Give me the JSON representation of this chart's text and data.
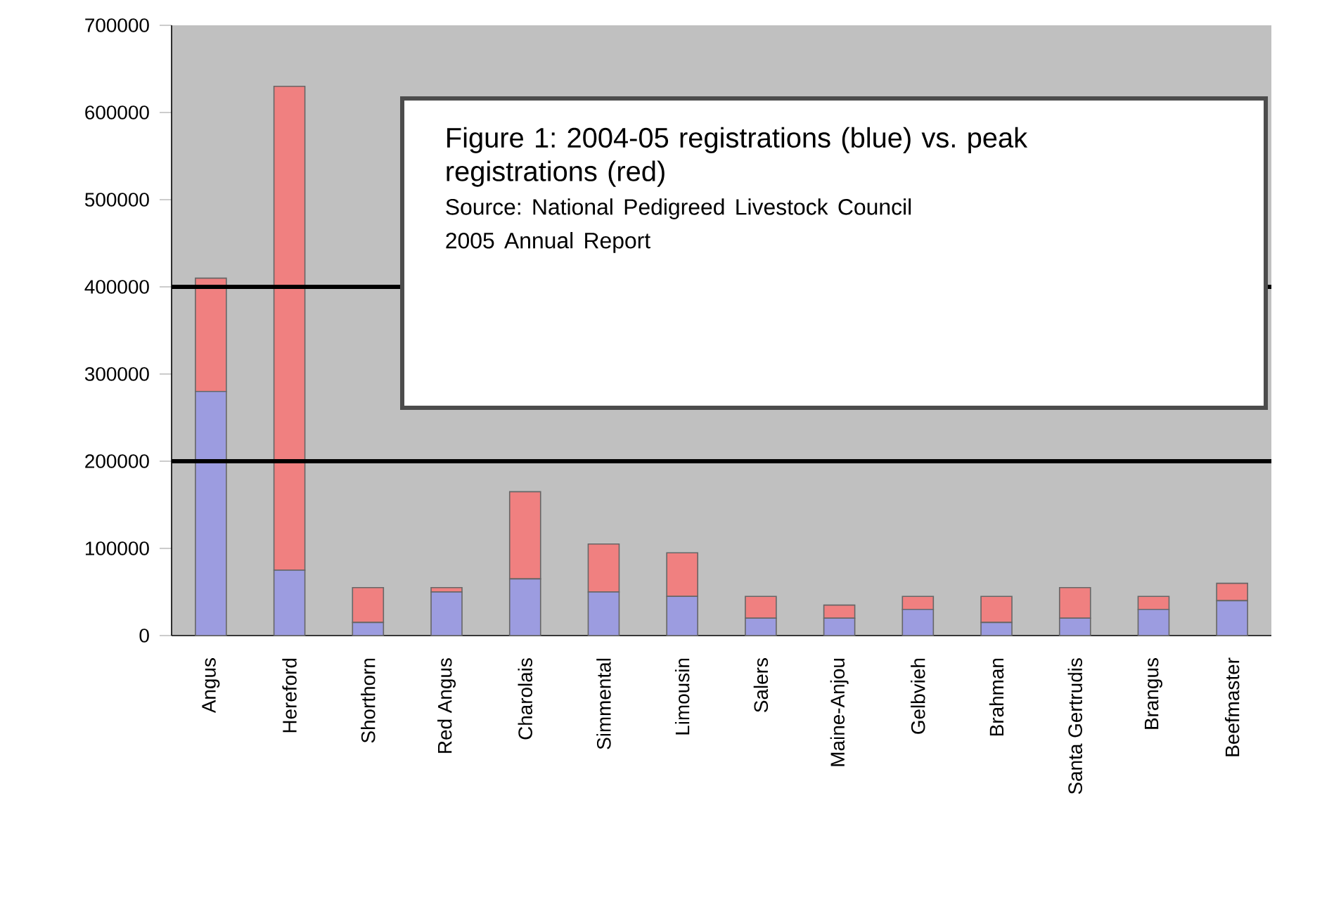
{
  "chart_data": {
    "type": "bar",
    "stacked": true,
    "title": "Figure 1: 2004-05 registrations (blue) vs. peak registrations (red)",
    "annotations": [
      "Source: National Pedigreed Livestock Council",
      "2005 Annual Report"
    ],
    "categories": [
      "Angus",
      "Hereford",
      "Shorthorn",
      "Red Angus",
      "Charolais",
      "Simmental",
      "Limousin",
      "Salers",
      "Maine-Anjou",
      "Gelbvieh",
      "Brahman",
      "Santa Gertrudis",
      "Brangus",
      "Beefmaster"
    ],
    "series": [
      {
        "color": "#9c9ce0",
        "values": [
          280000,
          75000,
          15000,
          50000,
          65000,
          50000,
          45000,
          20000,
          20000,
          30000,
          15000,
          20000,
          30000,
          40000
        ]
      },
      {
        "color": "#f08080",
        "values": [
          130000,
          555000,
          40000,
          5000,
          100000,
          55000,
          50000,
          25000,
          15000,
          15000,
          30000,
          35000,
          15000,
          20000
        ]
      }
    ],
    "ylim": [
      0,
      700000
    ],
    "yticks": [
      0,
      100000,
      200000,
      300000,
      400000,
      500000,
      600000,
      700000
    ],
    "ref_lines": [
      {
        "axis": "y",
        "value": 200000,
        "color": "#000000"
      },
      {
        "axis": "y",
        "value": 400000,
        "color": "#000000"
      }
    ]
  }
}
